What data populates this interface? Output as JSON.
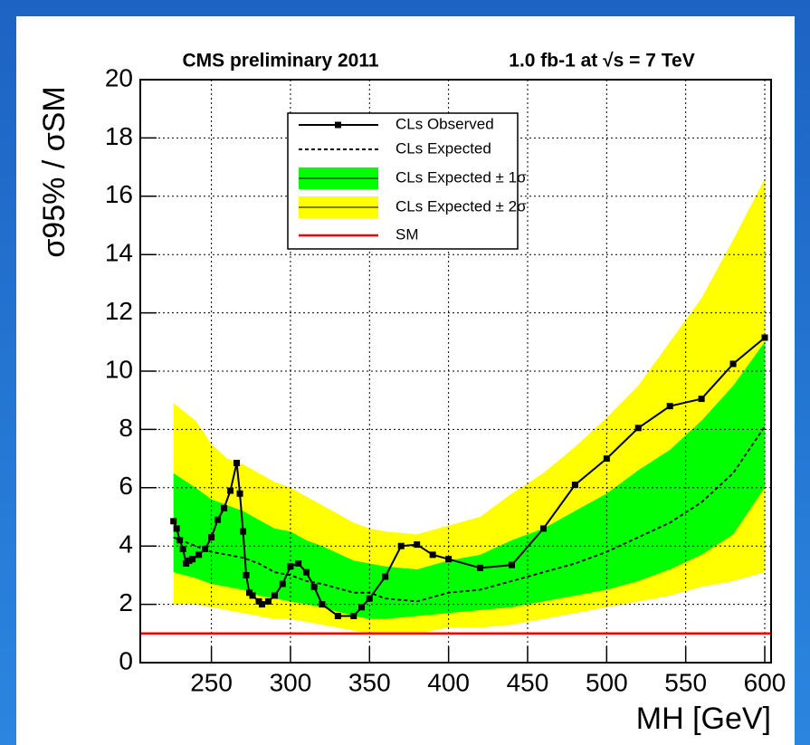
{
  "chart_data": {
    "type": "line",
    "title_left": "CMS preliminary 2011",
    "title_right": "1.0 fb-1 at √s = 7 TeV",
    "xlabel": "MH [GeV]",
    "ylabel": "σ95% / σSM",
    "xlim": [
      205,
      604
    ],
    "ylim": [
      0,
      20
    ],
    "xticks": [
      250,
      300,
      350,
      400,
      450,
      500,
      550,
      600
    ],
    "yticks": [
      0,
      2,
      4,
      6,
      8,
      10,
      12,
      14,
      16,
      18,
      20
    ],
    "grid": true,
    "series": [
      {
        "name": "CLs Observed",
        "color": "#000000",
        "style": "markers",
        "x": [
          226,
          228,
          230,
          232,
          234,
          236,
          238,
          242,
          246,
          250,
          254,
          258,
          262,
          266,
          268,
          270,
          272,
          274,
          276,
          280,
          282,
          286,
          290,
          295,
          300,
          305,
          310,
          315,
          320,
          330,
          340,
          345,
          350,
          360,
          370,
          380,
          390,
          400,
          420,
          440,
          460,
          480,
          500,
          520,
          540,
          560,
          580,
          600
        ],
        "values": [
          4.85,
          4.6,
          4.2,
          3.9,
          3.4,
          3.5,
          3.55,
          3.7,
          3.9,
          4.3,
          4.9,
          5.3,
          5.9,
          6.85,
          5.8,
          4.5,
          3.0,
          2.4,
          2.3,
          2.1,
          2.0,
          2.1,
          2.3,
          2.7,
          3.3,
          3.4,
          3.1,
          2.6,
          2.0,
          1.6,
          1.6,
          1.9,
          2.2,
          2.95,
          4.0,
          4.05,
          3.7,
          3.55,
          3.25,
          3.35,
          4.6,
          6.1,
          7.0,
          8.05,
          8.8,
          9.05,
          10.25,
          11.15
        ]
      },
      {
        "name": "CLs Expected",
        "color": "#000000",
        "style": "dashed",
        "x": [
          226,
          240,
          250,
          260,
          270,
          280,
          290,
          300,
          310,
          320,
          340,
          350,
          360,
          380,
          400,
          420,
          440,
          460,
          480,
          500,
          520,
          540,
          560,
          580,
          600
        ],
        "values": [
          4.3,
          4.0,
          3.8,
          3.7,
          3.6,
          3.4,
          3.1,
          3.0,
          2.8,
          2.7,
          2.4,
          2.4,
          2.2,
          2.1,
          2.4,
          2.5,
          2.8,
          3.1,
          3.4,
          3.8,
          4.3,
          4.8,
          5.5,
          6.5,
          8.1
        ]
      }
    ],
    "bands": [
      {
        "name": "CLs Expected ± 2σ",
        "color": "#ffff00",
        "x": [
          226,
          240,
          250,
          260,
          270,
          280,
          290,
          300,
          310,
          320,
          340,
          350,
          360,
          380,
          400,
          420,
          440,
          460,
          480,
          500,
          520,
          540,
          560,
          580,
          600
        ],
        "lower": [
          2.0,
          2.0,
          1.9,
          1.8,
          1.7,
          1.6,
          1.5,
          1.5,
          1.4,
          1.3,
          1.1,
          1.0,
          1.0,
          1.0,
          1.2,
          1.2,
          1.3,
          1.5,
          1.7,
          1.9,
          2.1,
          2.3,
          2.6,
          2.8,
          3.1
        ],
        "upper": [
          8.9,
          8.3,
          7.5,
          7.0,
          6.8,
          6.5,
          6.2,
          6.0,
          5.7,
          5.4,
          4.8,
          4.6,
          4.5,
          4.4,
          4.7,
          5.0,
          5.8,
          6.5,
          7.4,
          8.4,
          9.5,
          11.0,
          12.5,
          14.5,
          16.6
        ]
      },
      {
        "name": "CLs Expected ± 1σ",
        "color": "#00ff00",
        "x": [
          226,
          240,
          250,
          260,
          270,
          280,
          290,
          300,
          310,
          320,
          340,
          350,
          360,
          380,
          400,
          420,
          440,
          460,
          480,
          500,
          520,
          540,
          560,
          580,
          600
        ],
        "lower": [
          3.1,
          2.9,
          2.7,
          2.6,
          2.5,
          2.3,
          2.2,
          2.1,
          2.0,
          1.9,
          1.6,
          1.5,
          1.5,
          1.6,
          1.7,
          1.8,
          1.9,
          2.1,
          2.3,
          2.5,
          2.8,
          3.2,
          3.7,
          4.4,
          6.0
        ],
        "upper": [
          6.5,
          6.0,
          5.6,
          5.4,
          5.2,
          4.9,
          4.6,
          4.5,
          4.2,
          4.0,
          3.5,
          3.4,
          3.3,
          3.2,
          3.5,
          3.7,
          4.2,
          4.6,
          5.2,
          5.8,
          6.6,
          7.3,
          8.3,
          9.5,
          11.0
        ]
      }
    ],
    "reference_lines": [
      {
        "name": "SM",
        "color": "#ff0000",
        "value": 1
      }
    ]
  }
}
